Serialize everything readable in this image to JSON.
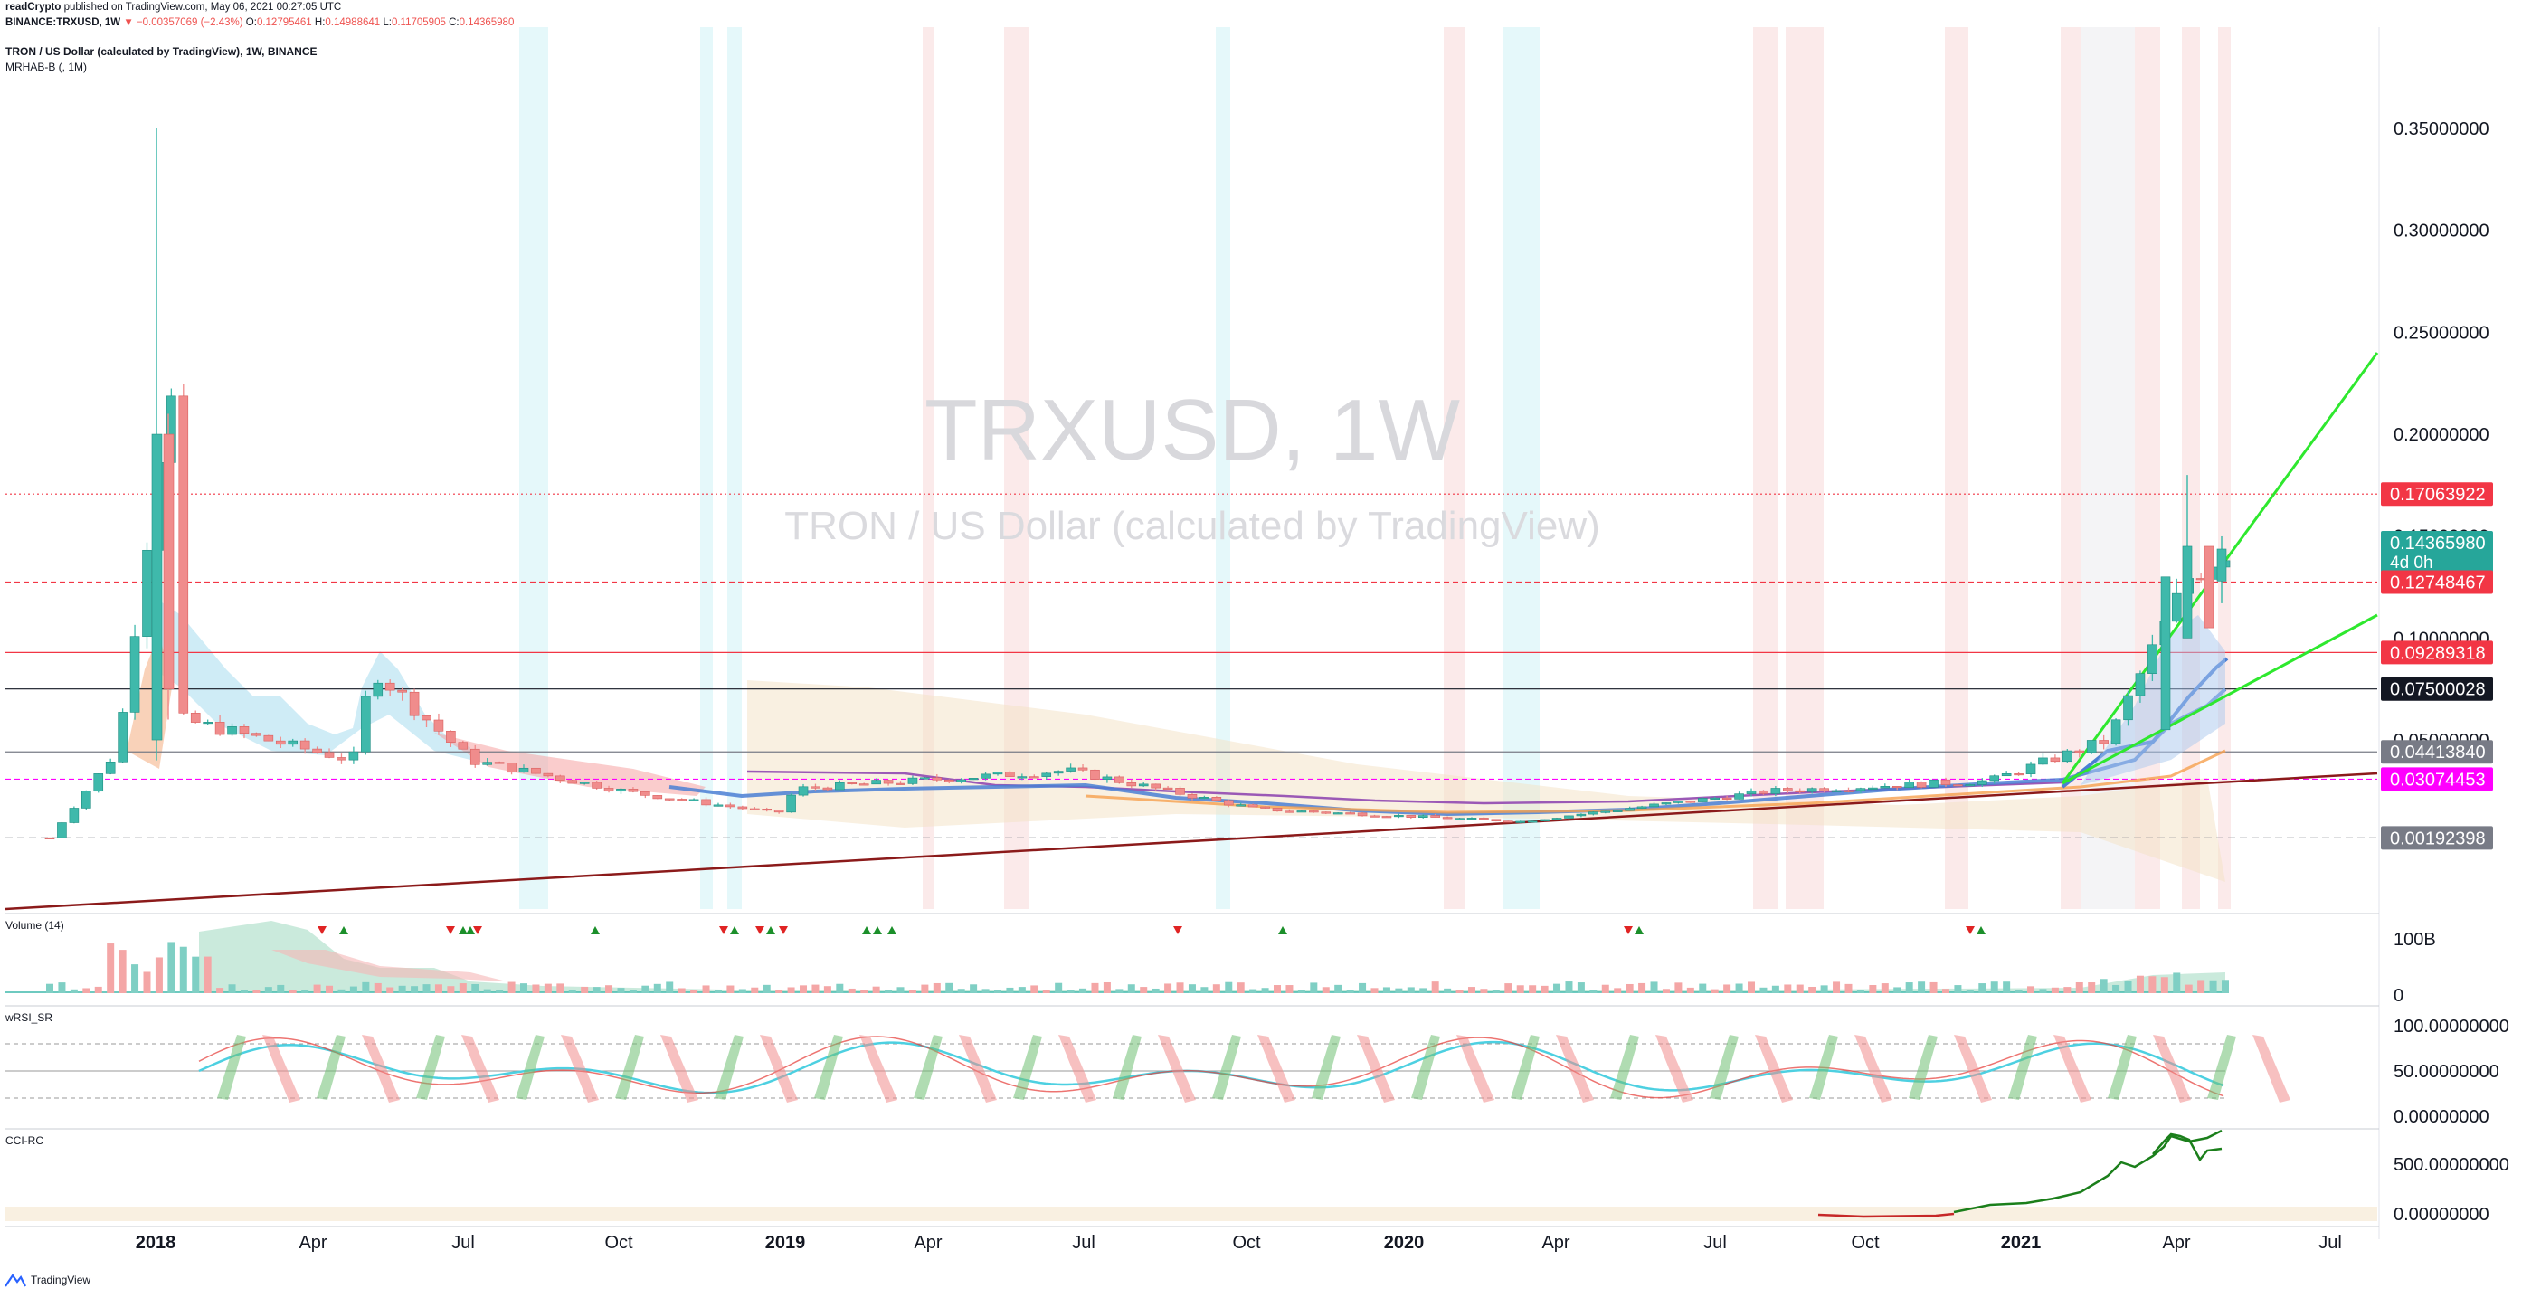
{
  "header": {
    "publisher": "readCrypto",
    "published_line": "published on TradingView.com, May 06, 2021 00:27:05 UTC",
    "symbol": "BINANCE:TRXUSD, 1W",
    "change_arrow": "▼",
    "change_text": "−0.00357069 (−2.43%)",
    "ohlc": {
      "O_label": "O:",
      "O": "0.12795461",
      "H_label": "H:",
      "H": "0.14988641",
      "L_label": "L:",
      "L": "0.11705905",
      "C_label": "C:",
      "C": "0.14365980"
    }
  },
  "legend": {
    "title": "TRON / US Dollar (calculated by TradingView), 1W, BINANCE",
    "indicator": "MRHAB-B (, 1M)"
  },
  "watermark": {
    "symbol": "TRXUSD, 1W",
    "description": "TRON / US Dollar (calculated by TradingView)"
  },
  "panes": {
    "volume": {
      "title": "Volume (14)",
      "ticks": [
        "100B",
        "0"
      ]
    },
    "wrsi": {
      "title": "wRSI_SR",
      "ticks": [
        "100.00000000",
        "50.00000000",
        "0.00000000"
      ]
    },
    "cci": {
      "title": "CCI-RC",
      "ticks": [
        "500.00000000",
        "0.00000000"
      ]
    }
  },
  "footer": {
    "brand": "TradingView"
  },
  "colors": {
    "up": "#26a69a",
    "down": "#ef5350",
    "trendline_green": "#2ee82e",
    "trendline_dark": "#8b1a1a",
    "ma_blue": "#4a7fd4",
    "ma_purple": "#9b59b6",
    "label_red": "#f23645",
    "label_teal": "#26a69a",
    "label_black": "#131722",
    "label_magenta": "#ff00ff",
    "label_gray": "#787b86"
  },
  "chart_data": {
    "type": "candlestick",
    "title": "TRON / US Dollar (calculated by TradingView), 1W, BINANCE",
    "y_scale": "linear",
    "ylim": [
      0,
      0.38
    ],
    "y_ticks": [
      "0.35000000",
      "0.30000000",
      "0.25000000",
      "0.20000000",
      "0.15000000",
      "0.10000000",
      "0.05000000"
    ],
    "x_ticks": [
      "2018",
      "Apr",
      "Jul",
      "Oct",
      "2019",
      "Apr",
      "Jul",
      "Oct",
      "2020",
      "Apr",
      "Jul",
      "Oct",
      "2021",
      "Apr",
      "Jul"
    ],
    "price_labels": [
      {
        "value": 0.17063922,
        "text": "0.17063922",
        "color": "red",
        "line": "dotted-red"
      },
      {
        "value": 0.1436598,
        "text": "0.14365980",
        "sub": "4d 0h",
        "color": "teal",
        "line": "none"
      },
      {
        "value": 0.12748467,
        "text": "0.12748467",
        "color": "red",
        "line": "dashed-red"
      },
      {
        "value": 0.09289318,
        "text": "0.09289318",
        "color": "red",
        "line": "solid-red"
      },
      {
        "value": 0.07500028,
        "text": "0.07500028",
        "color": "black",
        "line": "solid-black"
      },
      {
        "value": 0.0441384,
        "text": "0.04413840",
        "color": "gray",
        "line": "solid-gray"
      },
      {
        "value": 0.03074453,
        "text": "0.03074453",
        "color": "magenta",
        "line": "dashed-magenta"
      },
      {
        "value": 0.00192398,
        "text": "0.00192398",
        "color": "gray",
        "line": "dashed-gray"
      }
    ],
    "ohlc_summary": {
      "open": 0.12795461,
      "high": 0.14988641,
      "low": 0.11705905,
      "close": 0.1436598,
      "change": -0.00357069,
      "change_pct": -2.43
    },
    "price_path_approx": [
      {
        "x": "2017-12",
        "y": 0.002
      },
      {
        "x": "2017-12-end",
        "y": 0.045
      },
      {
        "x": "2018-01",
        "y": 0.2
      },
      {
        "x": "2018-01-peak",
        "y": 0.35
      },
      {
        "x": "2018-02",
        "y": 0.06
      },
      {
        "x": "2018-04",
        "y": 0.04
      },
      {
        "x": "2018-05",
        "y": 0.085
      },
      {
        "x": "2018-07",
        "y": 0.04
      },
      {
        "x": "2018-10",
        "y": 0.024
      },
      {
        "x": "2018-12",
        "y": 0.014
      },
      {
        "x": "2019-01",
        "y": 0.026
      },
      {
        "x": "2019-06",
        "y": 0.035
      },
      {
        "x": "2019-10",
        "y": 0.016
      },
      {
        "x": "2020-03",
        "y": 0.01
      },
      {
        "x": "2020-08",
        "y": 0.025
      },
      {
        "x": "2020-12",
        "y": 0.03
      },
      {
        "x": "2021-02",
        "y": 0.05
      },
      {
        "x": "2021-04",
        "y": 0.13
      },
      {
        "x": "2021-05",
        "y": 0.1437
      }
    ]
  }
}
